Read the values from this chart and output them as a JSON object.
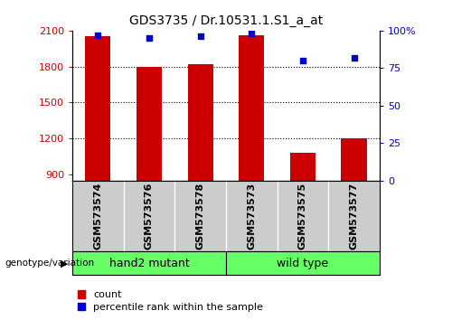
{
  "title": "GDS3735 / Dr.10531.1.S1_a_at",
  "categories": [
    "GSM573574",
    "GSM573576",
    "GSM573578",
    "GSM573573",
    "GSM573575",
    "GSM573577"
  ],
  "count_values": [
    2050,
    1800,
    1820,
    2060,
    1080,
    1200
  ],
  "percentile_values": [
    97,
    95,
    96,
    98,
    80,
    82
  ],
  "ylim_left": [
    850,
    2100
  ],
  "ylim_right": [
    0,
    100
  ],
  "yticks_left": [
    900,
    1200,
    1500,
    1800,
    2100
  ],
  "yticks_right": [
    0,
    25,
    50,
    75,
    100
  ],
  "ytick_labels_right": [
    "0",
    "25",
    "50",
    "75",
    "100%"
  ],
  "bar_color": "#cc0000",
  "dot_color": "#0000cc",
  "groups": [
    {
      "label": "hand2 mutant",
      "indices": [
        0,
        1,
        2
      ]
    },
    {
      "label": "wild type",
      "indices": [
        3,
        4,
        5
      ]
    }
  ],
  "group_bg_color": "#66ff66",
  "tick_area_color": "#cccccc",
  "legend_count_label": "count",
  "legend_pct_label": "percentile rank within the sample",
  "genotype_label": "genotype/variation",
  "bar_width": 0.5,
  "fig_width": 5.0,
  "fig_height": 3.54,
  "dpi": 100
}
